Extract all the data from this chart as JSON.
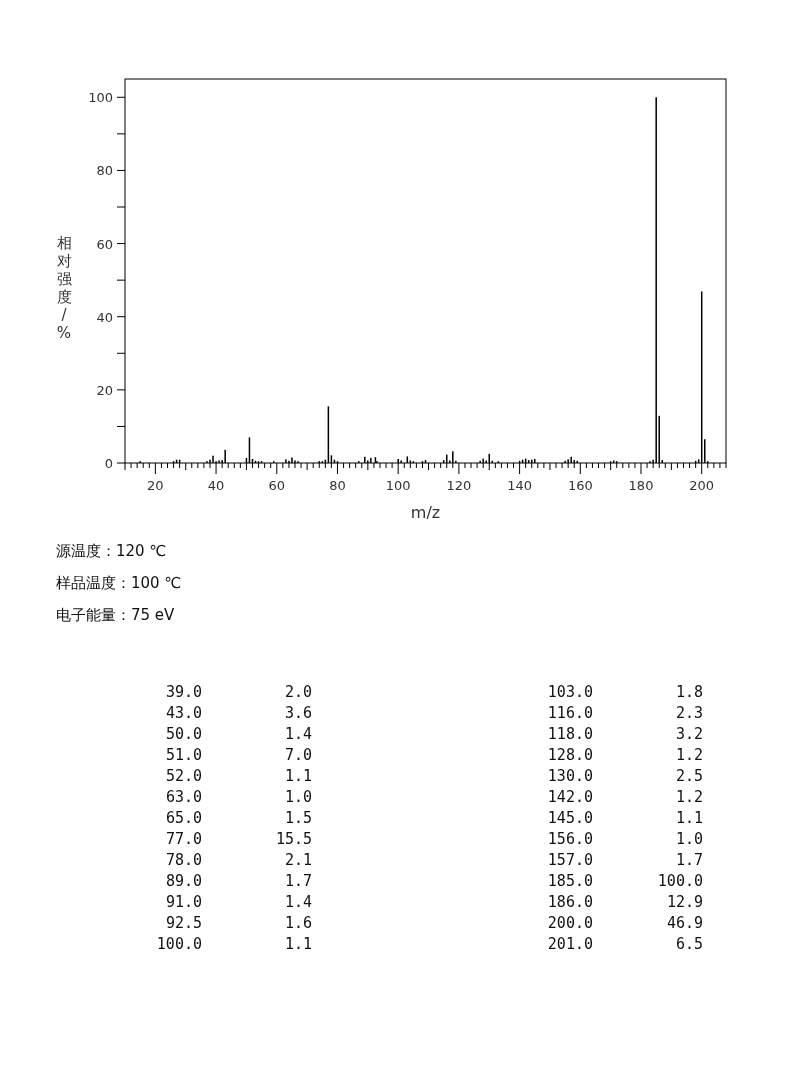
{
  "chart_data": [
    {
      "type": "bar",
      "xlabel": "m/z",
      "ylabel": "相对强度/%",
      "color": "#000000",
      "xlim": [
        10,
        208
      ],
      "xticks": [
        20,
        40,
        60,
        80,
        100,
        120,
        140,
        160,
        180,
        200
      ],
      "ylim": [
        0,
        105
      ],
      "yticks": [
        0,
        {
          "value": 10,
          "label": null
        },
        20,
        {
          "value": 30,
          "label": null
        },
        40,
        {
          "value": 50,
          "label": null
        },
        60,
        {
          "value": 70,
          "label": null
        },
        80,
        {
          "value": 90,
          "label": null
        },
        100
      ],
      "x": [
        15,
        26,
        27,
        28,
        37,
        38,
        39,
        40,
        41,
        42,
        43,
        50,
        51,
        52,
        53,
        54,
        55,
        59,
        63,
        64,
        65,
        66,
        67,
        74,
        75,
        76,
        77,
        78,
        79,
        80,
        87,
        89,
        90,
        91,
        92.5,
        93,
        100,
        101,
        103,
        104,
        105,
        108,
        109,
        115,
        116,
        117,
        118,
        119,
        127,
        128,
        129,
        130,
        131,
        133,
        140,
        141,
        142,
        143,
        144,
        145,
        155,
        156,
        157,
        158,
        159,
        170,
        171,
        172,
        183,
        184,
        185,
        186,
        187,
        198,
        199,
        200,
        201,
        202
      ],
      "values": [
        0.5,
        0.5,
        0.9,
        0.9,
        0.5,
        0.9,
        2.0,
        0.5,
        0.7,
        0.8,
        3.6,
        1.4,
        7.0,
        1.1,
        0.6,
        0.5,
        0.5,
        0.5,
        1.0,
        0.6,
        1.5,
        0.7,
        0.5,
        0.5,
        0.5,
        0.9,
        15.5,
        2.1,
        0.9,
        0.5,
        0.5,
        1.7,
        0.7,
        1.4,
        1.6,
        0.5,
        1.1,
        0.7,
        1.8,
        0.7,
        0.5,
        0.5,
        0.8,
        0.8,
        2.3,
        0.7,
        3.2,
        0.6,
        0.6,
        1.2,
        0.7,
        2.5,
        0.6,
        0.5,
        0.6,
        0.9,
        1.2,
        0.8,
        0.9,
        1.1,
        0.6,
        1.0,
        1.7,
        0.8,
        0.6,
        0.5,
        0.7,
        0.5,
        0.5,
        0.9,
        100.0,
        12.9,
        0.8,
        0.6,
        1.0,
        46.9,
        6.5,
        0.5
      ],
      "annotations": [
        "源温度：120 ℃",
        "样品温度：100 ℃",
        "电子能量：75 eV"
      ]
    },
    {
      "type": "other",
      "annotations": [
        "39.0",
        "2.0",
        "43.0",
        "3.6",
        "50.0",
        "1.4",
        "51.0",
        "7.0",
        "52.0",
        "1.1",
        "63.0",
        "1.0",
        "65.0",
        "1.5",
        "77.0",
        "15.5",
        "78.0",
        "2.1",
        "89.0",
        "1.7",
        "91.0",
        "1.4",
        "92.5",
        "1.6",
        "100.0",
        "1.1",
        "103.0",
        "1.8",
        "116.0",
        "2.3",
        "118.0",
        "3.2",
        "128.0",
        "1.2",
        "130.0",
        "2.5",
        "142.0",
        "1.2",
        "145.0",
        "1.1",
        "156.0",
        "1.0",
        "157.0",
        "1.7",
        "185.0",
        "100.0",
        "186.0",
        "12.9",
        "200.0",
        "46.9",
        "201.0",
        "6.5"
      ]
    }
  ]
}
